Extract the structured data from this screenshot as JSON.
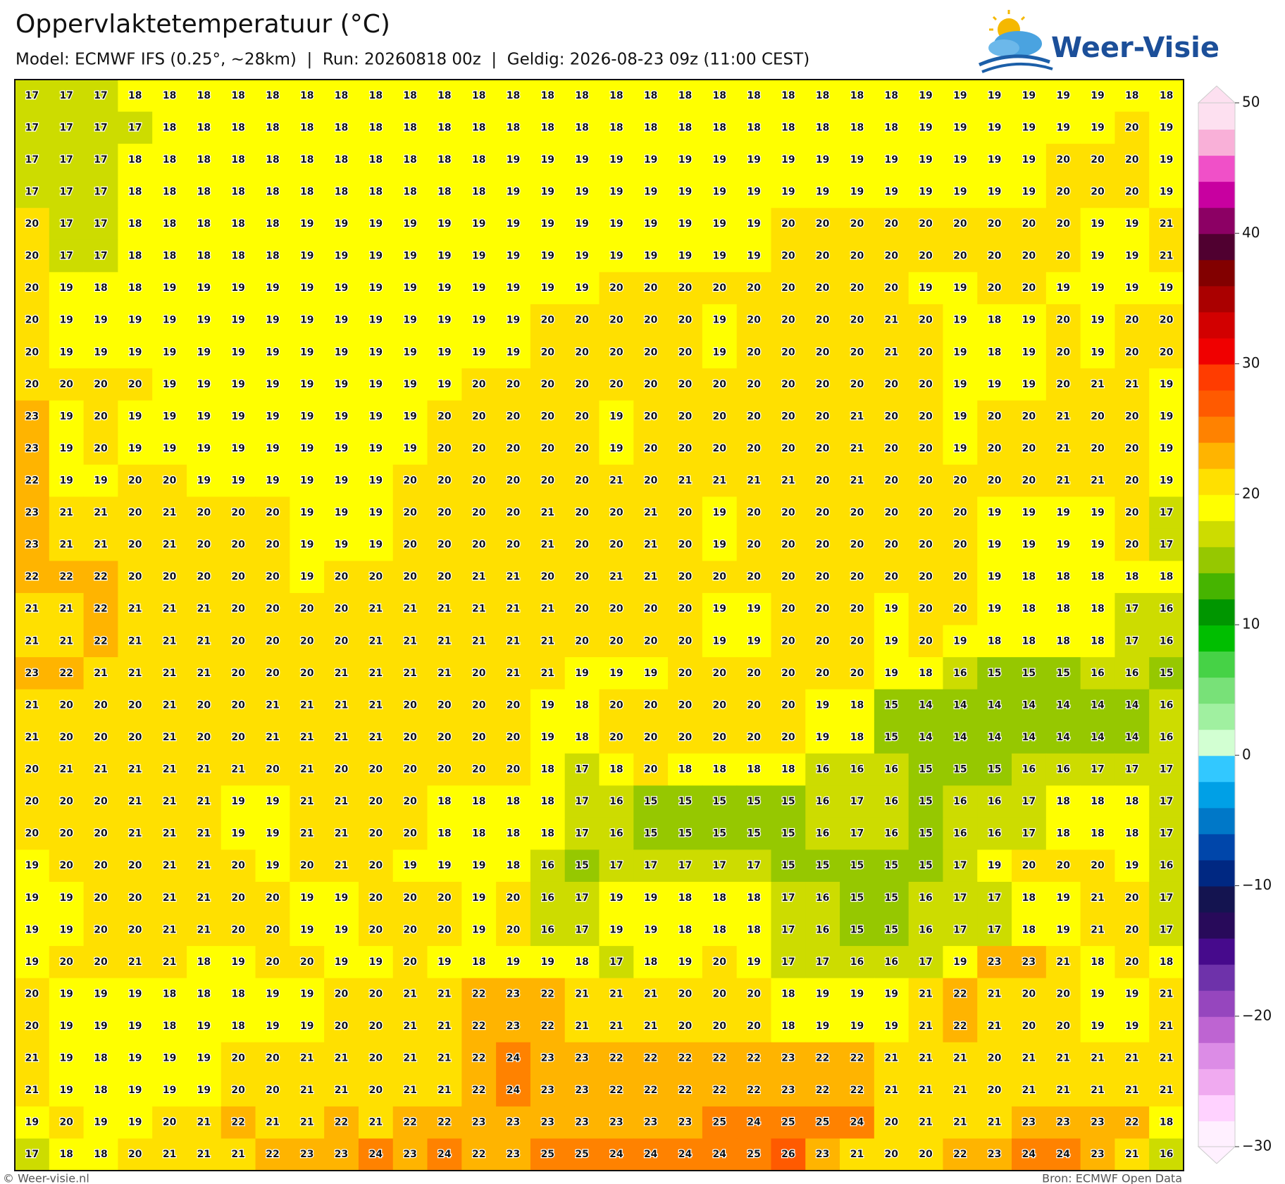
{
  "header": {
    "title": "Oppervlaktetemperatuur (°C)",
    "subtitle": "Model: ECMWF IFS (0.25°, ~28km)  |  Run: 20260818 00z  |  Geldig: 2026-08-23 09z (11:00 CEST)",
    "logo": "Weer-Visie"
  },
  "grid": [
    [
      17,
      17,
      17,
      18,
      18,
      18,
      18,
      18,
      18,
      18,
      18,
      18,
      18,
      18,
      18,
      18,
      18,
      18,
      18,
      18,
      18,
      18,
      18,
      18,
      18,
      18,
      19,
      19,
      19,
      19,
      19,
      19,
      18,
      18
    ],
    [
      17,
      17,
      17,
      17,
      18,
      18,
      18,
      18,
      18,
      18,
      18,
      18,
      18,
      18,
      18,
      18,
      18,
      18,
      18,
      18,
      18,
      18,
      18,
      18,
      18,
      18,
      19,
      19,
      19,
      19,
      19,
      19,
      20,
      19
    ],
    [
      17,
      17,
      17,
      18,
      18,
      18,
      18,
      18,
      18,
      18,
      18,
      18,
      18,
      18,
      19,
      19,
      19,
      19,
      19,
      19,
      19,
      19,
      19,
      19,
      19,
      19,
      19,
      19,
      19,
      19,
      20,
      20,
      20,
      19
    ],
    [
      17,
      17,
      17,
      18,
      18,
      18,
      18,
      18,
      18,
      18,
      18,
      18,
      18,
      18,
      19,
      19,
      19,
      19,
      19,
      19,
      19,
      19,
      19,
      19,
      19,
      19,
      19,
      19,
      19,
      19,
      20,
      20,
      20,
      19
    ],
    [
      20,
      17,
      17,
      18,
      18,
      18,
      18,
      18,
      19,
      19,
      19,
      19,
      19,
      19,
      19,
      19,
      19,
      19,
      19,
      19,
      19,
      19,
      20,
      20,
      20,
      20,
      20,
      20,
      20,
      20,
      20,
      19,
      19,
      21
    ],
    [
      20,
      17,
      17,
      18,
      18,
      18,
      18,
      18,
      19,
      19,
      19,
      19,
      19,
      19,
      19,
      19,
      19,
      19,
      19,
      19,
      19,
      19,
      20,
      20,
      20,
      20,
      20,
      20,
      20,
      20,
      20,
      19,
      19,
      21
    ],
    [
      20,
      19,
      18,
      18,
      19,
      19,
      19,
      19,
      19,
      19,
      19,
      19,
      19,
      19,
      19,
      19,
      19,
      20,
      20,
      20,
      20,
      20,
      20,
      20,
      20,
      20,
      19,
      19,
      20,
      20,
      19,
      19,
      19,
      19
    ],
    [
      20,
      19,
      19,
      19,
      19,
      19,
      19,
      19,
      19,
      19,
      19,
      19,
      19,
      19,
      19,
      20,
      20,
      20,
      20,
      20,
      19,
      20,
      20,
      20,
      20,
      21,
      20,
      19,
      18,
      19,
      20,
      19,
      20,
      20
    ],
    [
      20,
      19,
      19,
      19,
      19,
      19,
      19,
      19,
      19,
      19,
      19,
      19,
      19,
      19,
      19,
      20,
      20,
      20,
      20,
      20,
      19,
      20,
      20,
      20,
      20,
      21,
      20,
      19,
      18,
      19,
      20,
      19,
      20,
      20
    ],
    [
      20,
      20,
      20,
      20,
      19,
      19,
      19,
      19,
      19,
      19,
      19,
      19,
      19,
      20,
      20,
      20,
      20,
      20,
      20,
      20,
      20,
      20,
      20,
      20,
      20,
      20,
      20,
      19,
      19,
      19,
      20,
      21,
      21,
      19
    ],
    [
      23,
      19,
      20,
      19,
      19,
      19,
      19,
      19,
      19,
      19,
      19,
      19,
      20,
      20,
      20,
      20,
      20,
      19,
      20,
      20,
      20,
      20,
      20,
      20,
      21,
      20,
      20,
      19,
      20,
      20,
      21,
      20,
      20,
      19
    ],
    [
      23,
      19,
      20,
      19,
      19,
      19,
      19,
      19,
      19,
      19,
      19,
      19,
      20,
      20,
      20,
      20,
      20,
      19,
      20,
      20,
      20,
      20,
      20,
      20,
      21,
      20,
      20,
      19,
      20,
      20,
      21,
      20,
      20,
      19
    ],
    [
      22,
      19,
      19,
      20,
      20,
      19,
      19,
      19,
      19,
      19,
      19,
      20,
      20,
      20,
      20,
      20,
      20,
      21,
      20,
      21,
      21,
      21,
      21,
      20,
      21,
      20,
      20,
      20,
      20,
      20,
      21,
      21,
      20,
      19
    ],
    [
      23,
      21,
      21,
      20,
      21,
      20,
      20,
      20,
      19,
      19,
      19,
      20,
      20,
      20,
      20,
      21,
      20,
      20,
      21,
      20,
      19,
      20,
      20,
      20,
      20,
      20,
      20,
      20,
      19,
      19,
      19,
      19,
      20,
      17
    ],
    [
      23,
      21,
      21,
      20,
      21,
      20,
      20,
      20,
      19,
      19,
      19,
      20,
      20,
      20,
      20,
      21,
      20,
      20,
      21,
      20,
      19,
      20,
      20,
      20,
      20,
      20,
      20,
      20,
      19,
      19,
      19,
      19,
      20,
      17
    ],
    [
      22,
      22,
      22,
      20,
      20,
      20,
      20,
      20,
      19,
      20,
      20,
      20,
      20,
      21,
      21,
      20,
      20,
      21,
      21,
      20,
      20,
      20,
      20,
      20,
      20,
      20,
      20,
      20,
      19,
      18,
      18,
      18,
      18,
      18
    ],
    [
      21,
      21,
      22,
      21,
      21,
      21,
      20,
      20,
      20,
      20,
      21,
      21,
      21,
      21,
      21,
      21,
      20,
      20,
      20,
      20,
      19,
      19,
      20,
      20,
      20,
      19,
      20,
      20,
      19,
      18,
      18,
      18,
      17,
      16
    ],
    [
      21,
      21,
      22,
      21,
      21,
      21,
      20,
      20,
      20,
      20,
      21,
      21,
      21,
      21,
      21,
      21,
      20,
      20,
      20,
      20,
      19,
      19,
      20,
      20,
      20,
      19,
      20,
      19,
      18,
      18,
      18,
      18,
      17,
      16
    ],
    [
      23,
      22,
      21,
      21,
      21,
      21,
      20,
      20,
      20,
      21,
      21,
      21,
      21,
      20,
      21,
      21,
      19,
      19,
      19,
      20,
      20,
      20,
      20,
      20,
      20,
      19,
      18,
      16,
      15,
      15,
      15,
      16,
      16,
      15
    ],
    [
      21,
      20,
      20,
      20,
      21,
      20,
      20,
      21,
      21,
      21,
      21,
      20,
      20,
      20,
      20,
      19,
      18,
      20,
      20,
      20,
      20,
      20,
      20,
      19,
      18,
      15,
      14,
      14,
      14,
      14,
      14,
      14,
      14,
      16
    ],
    [
      21,
      20,
      20,
      20,
      21,
      20,
      20,
      21,
      21,
      21,
      21,
      20,
      20,
      20,
      20,
      19,
      18,
      20,
      20,
      20,
      20,
      20,
      20,
      19,
      18,
      15,
      14,
      14,
      14,
      14,
      14,
      14,
      14,
      16
    ],
    [
      20,
      21,
      21,
      21,
      21,
      21,
      21,
      20,
      21,
      20,
      20,
      20,
      20,
      20,
      20,
      18,
      17,
      18,
      20,
      18,
      18,
      18,
      18,
      16,
      16,
      16,
      15,
      15,
      15,
      16,
      16,
      17,
      17,
      17
    ],
    [
      20,
      20,
      20,
      21,
      21,
      21,
      19,
      19,
      21,
      21,
      20,
      20,
      18,
      18,
      18,
      18,
      17,
      16,
      15,
      15,
      15,
      15,
      15,
      16,
      17,
      16,
      15,
      16,
      16,
      17,
      18,
      18,
      18,
      17
    ],
    [
      20,
      20,
      20,
      21,
      21,
      21,
      19,
      19,
      21,
      21,
      20,
      20,
      18,
      18,
      18,
      18,
      17,
      16,
      15,
      15,
      15,
      15,
      15,
      16,
      17,
      16,
      15,
      16,
      16,
      17,
      18,
      18,
      18,
      17
    ],
    [
      19,
      20,
      20,
      20,
      21,
      21,
      20,
      19,
      20,
      21,
      20,
      19,
      19,
      19,
      18,
      16,
      15,
      17,
      17,
      17,
      17,
      17,
      15,
      15,
      15,
      15,
      15,
      17,
      19,
      20,
      20,
      20,
      19,
      16
    ],
    [
      19,
      19,
      20,
      20,
      21,
      21,
      20,
      20,
      19,
      19,
      20,
      20,
      20,
      19,
      20,
      16,
      17,
      19,
      19,
      18,
      18,
      18,
      17,
      16,
      15,
      15,
      16,
      17,
      17,
      18,
      19,
      21,
      20,
      17
    ],
    [
      19,
      19,
      20,
      20,
      21,
      21,
      20,
      20,
      19,
      19,
      20,
      20,
      20,
      19,
      20,
      16,
      17,
      19,
      19,
      18,
      18,
      18,
      17,
      16,
      15,
      15,
      16,
      17,
      17,
      18,
      19,
      21,
      20,
      17
    ],
    [
      19,
      20,
      20,
      21,
      21,
      18,
      19,
      20,
      20,
      19,
      19,
      20,
      19,
      18,
      19,
      19,
      18,
      17,
      18,
      19,
      20,
      19,
      17,
      17,
      16,
      16,
      17,
      19,
      23,
      23,
      21,
      18,
      20,
      18
    ],
    [
      20,
      19,
      19,
      19,
      18,
      18,
      18,
      19,
      19,
      20,
      20,
      21,
      21,
      22,
      23,
      22,
      21,
      21,
      21,
      20,
      20,
      20,
      18,
      19,
      19,
      19,
      21,
      22,
      21,
      20,
      20,
      19,
      19,
      21
    ],
    [
      20,
      19,
      19,
      19,
      18,
      19,
      18,
      19,
      19,
      20,
      20,
      21,
      21,
      22,
      23,
      22,
      21,
      21,
      21,
      20,
      20,
      20,
      18,
      19,
      19,
      19,
      21,
      22,
      21,
      20,
      20,
      19,
      19,
      21
    ],
    [
      21,
      19,
      18,
      19,
      19,
      19,
      20,
      20,
      21,
      21,
      20,
      21,
      21,
      22,
      24,
      23,
      23,
      22,
      22,
      22,
      22,
      22,
      23,
      22,
      22,
      21,
      21,
      21,
      20,
      21,
      21,
      21,
      21,
      21
    ],
    [
      21,
      19,
      18,
      19,
      19,
      19,
      20,
      20,
      21,
      21,
      20,
      21,
      21,
      22,
      24,
      23,
      23,
      22,
      22,
      22,
      22,
      22,
      23,
      22,
      22,
      21,
      21,
      21,
      20,
      21,
      21,
      21,
      21,
      21
    ],
    [
      19,
      20,
      19,
      19,
      20,
      21,
      22,
      21,
      21,
      22,
      21,
      22,
      22,
      23,
      23,
      23,
      23,
      23,
      23,
      23,
      25,
      24,
      25,
      25,
      24,
      20,
      21,
      21,
      21,
      23,
      23,
      23,
      22,
      18
    ],
    [
      17,
      18,
      18,
      20,
      21,
      21,
      21,
      22,
      23,
      23,
      24,
      23,
      24,
      22,
      23,
      25,
      25,
      24,
      24,
      24,
      24,
      25,
      26,
      23,
      21,
      20,
      20,
      22,
      23,
      24,
      24,
      23,
      21,
      16
    ]
  ],
  "colorbar": {
    "lim": [
      -30,
      50
    ],
    "ticks": [
      50,
      40,
      30,
      20,
      10,
      0,
      {
        "value": -10,
        "label": "−10"
      },
      {
        "value": -20,
        "label": "−20"
      },
      {
        "value": -30,
        "label": "−30"
      }
    ],
    "colors": [
      "#fff0ff",
      "#ffd2ff",
      "#f0aaf0",
      "#dc8ce6",
      "#be64d2",
      "#9646be",
      "#6e32aa",
      "#460a8c",
      "#280a5a",
      "#141450",
      "#002882",
      "#0046aa",
      "#0078c8",
      "#00a0e6",
      "#32c8ff",
      "#d2ffd2",
      "#a0f0a0",
      "#78e178",
      "#46d246",
      "#00be00",
      "#009600",
      "#46b400",
      "#96c800",
      "#cddc00",
      "#ffff00",
      "#ffe000",
      "#ffb400",
      "#ff8200",
      "#ff5a00",
      "#ff3c00",
      "#f00000",
      "#d20000",
      "#aa0000",
      "#820000",
      "#500030",
      "#8c0064",
      "#c800a0",
      "#f050c8",
      "#f9b0d8",
      "#fde0f0"
    ]
  },
  "footer": {
    "left": "© Weer-visie.nl",
    "right": "Bron: ECMWF Open Data"
  }
}
